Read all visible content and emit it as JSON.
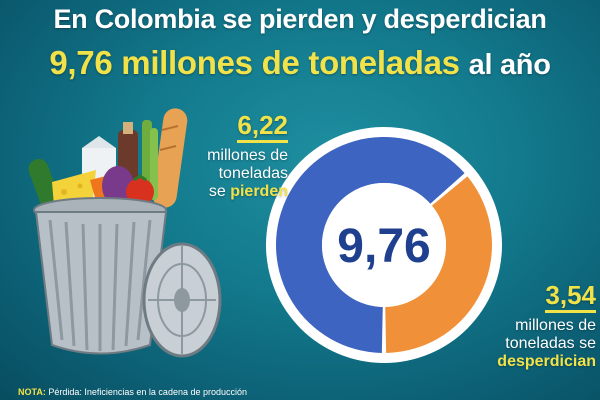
{
  "header": {
    "line1": "En Colombia se pierden y desperdician",
    "line2_highlight": "9,76 millones de toneladas",
    "line2_suffix": "al año"
  },
  "chart_data": {
    "type": "pie",
    "center_label": "9,76",
    "slices": [
      {
        "label": "se pierden",
        "value": 6.22,
        "value_label": "6,22",
        "color": "#3e64c2"
      },
      {
        "label": "se desperdician",
        "value": 3.54,
        "value_label": "3,54",
        "color": "#f0913a"
      }
    ]
  },
  "callouts": {
    "lost": {
      "value": "6,22",
      "line1": "millones de",
      "line2": "toneladas",
      "line3_prefix": "se",
      "line3_highlight": "pierden"
    },
    "wasted": {
      "value": "3,54",
      "line1": "millones de",
      "line2": "toneladas se",
      "line3_highlight": "desperdician"
    }
  },
  "note": {
    "label": "NOTA:",
    "term": "Pérdida:",
    "text": "Ineficiencias en la cadena de producción"
  },
  "illustration": {
    "icon": "trash-can-with-groceries"
  }
}
